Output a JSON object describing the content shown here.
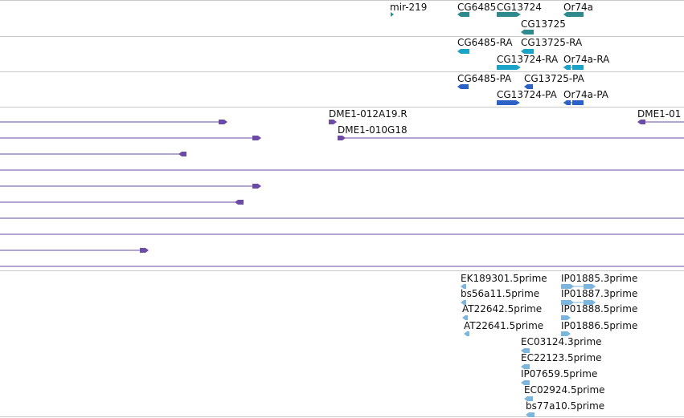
{
  "colors": {
    "gene": "#2f8a8e",
    "transcript": "#1ba2c7",
    "protein": "#2c62c6",
    "clone": "#6b4ba3",
    "est": "#7db6dc",
    "divider": "#c9c9c9"
  },
  "tracks": {
    "genes": {
      "items": [
        {
          "name": "mir-219"
        },
        {
          "name": "CG6485"
        },
        {
          "name": "CG13724"
        },
        {
          "name": "Or74a"
        },
        {
          "name": "CG13725"
        }
      ]
    },
    "transcripts": {
      "items": [
        {
          "name": "CG6485-RA"
        },
        {
          "name": "CG13725-RA"
        },
        {
          "name": "CG13724-RA"
        },
        {
          "name": "Or74a-RA"
        }
      ]
    },
    "proteins": {
      "items": [
        {
          "name": "CG6485-PA"
        },
        {
          "name": "CG13725-PA"
        },
        {
          "name": "CG13724-PA"
        },
        {
          "name": "Or74a-PA"
        }
      ]
    },
    "clones": {
      "items": [
        {
          "name": "DME1-012A19.R"
        },
        {
          "name": "DME1-010G18"
        },
        {
          "name": "DME1-01"
        }
      ]
    },
    "ests": {
      "items": [
        {
          "name": "EK189301.5prime"
        },
        {
          "name": "IP01885.3prime"
        },
        {
          "name": "bs56a11.5prime"
        },
        {
          "name": "IP01887.3prime"
        },
        {
          "name": "AT22642.5prime"
        },
        {
          "name": "IP01888.5prime"
        },
        {
          "name": "AT22641.5prime"
        },
        {
          "name": "IP01886.5prime"
        },
        {
          "name": "EC03124.3prime"
        },
        {
          "name": "EC22123.5prime"
        },
        {
          "name": "IP07659.5prime"
        },
        {
          "name": "EC02924.5prime"
        },
        {
          "name": "bs77a10.5prime"
        }
      ]
    }
  }
}
